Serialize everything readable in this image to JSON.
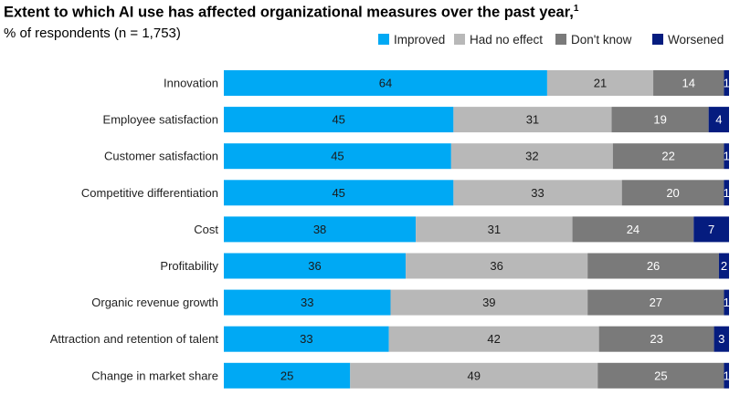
{
  "title": "Extent to which AI use has affected organizational measures over the past year,",
  "title_footnote": "1",
  "subtitle": "% of respondents (n = 1,753)",
  "chart_data": {
    "type": "bar",
    "orientation": "horizontal",
    "stacked": true,
    "legend_position": "top-right",
    "categories": [
      "Innovation",
      "Employee satisfaction",
      "Customer satisfaction",
      "Competitive differentiation",
      "Cost",
      "Profitability",
      "Organic revenue growth",
      "Attraction and retention of talent",
      "Change in market share"
    ],
    "series": [
      {
        "name": "Improved",
        "color": "#00a9f4",
        "label_color": "#1a1a1a",
        "values": [
          64,
          45,
          45,
          45,
          38,
          36,
          33,
          33,
          25
        ]
      },
      {
        "name": "Had no effect",
        "color": "#b8b8b8",
        "label_color": "#1a1a1a",
        "values": [
          21,
          31,
          32,
          33,
          31,
          36,
          39,
          42,
          49
        ]
      },
      {
        "name": "Don't know",
        "color": "#7a7a7a",
        "label_color": "#ffffff",
        "values": [
          14,
          19,
          22,
          20,
          24,
          26,
          27,
          23,
          25
        ]
      },
      {
        "name": "Worsened",
        "color": "#051c7f",
        "label_color": "#ffffff",
        "values": [
          1,
          4,
          1,
          1,
          7,
          2,
          1,
          3,
          1
        ]
      }
    ]
  }
}
